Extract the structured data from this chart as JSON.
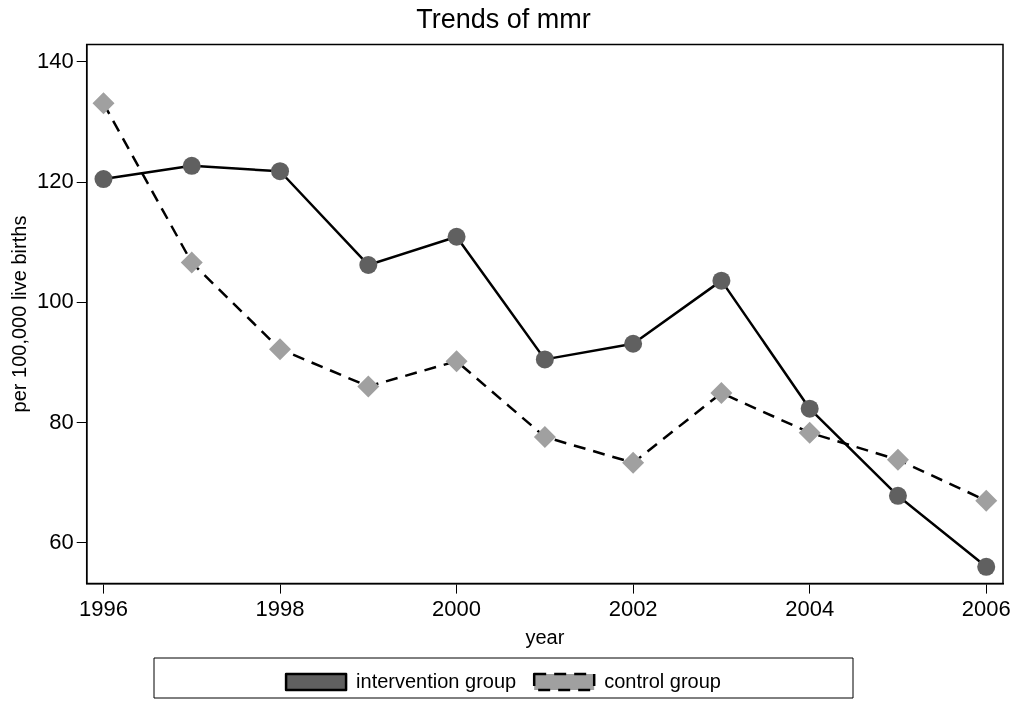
{
  "chart_data": {
    "type": "line",
    "title": "Trends of mmr",
    "xlabel": "year",
    "ylabel": "per 100,000 live births",
    "x": [
      1996,
      1997,
      1998,
      1999,
      2000,
      2001,
      2002,
      2003,
      2004,
      2005,
      2006
    ],
    "xlim": [
      1995.81,
      2006.19
    ],
    "xticks": [
      1996,
      1998,
      2000,
      2002,
      2004,
      2006
    ],
    "ylim": [
      53.2,
      142.9
    ],
    "yticks": [
      60,
      80,
      100,
      120,
      140
    ],
    "grid": false,
    "legend": "bottom",
    "series": [
      {
        "name": "intervention group",
        "color": "#606060",
        "marker": "circle",
        "line_style": "solid",
        "values": [
          120.5,
          122.7,
          121.8,
          106.2,
          110.9,
          90.5,
          93.1,
          103.6,
          82.3,
          67.8,
          56.0
        ]
      },
      {
        "name": "control group",
        "color": "#a0a0a0",
        "marker": "diamond",
        "line_style": "dashed",
        "values": [
          133.1,
          106.6,
          92.2,
          86.0,
          90.2,
          77.6,
          73.3,
          84.9,
          78.3,
          73.8,
          67.0
        ]
      }
    ]
  }
}
